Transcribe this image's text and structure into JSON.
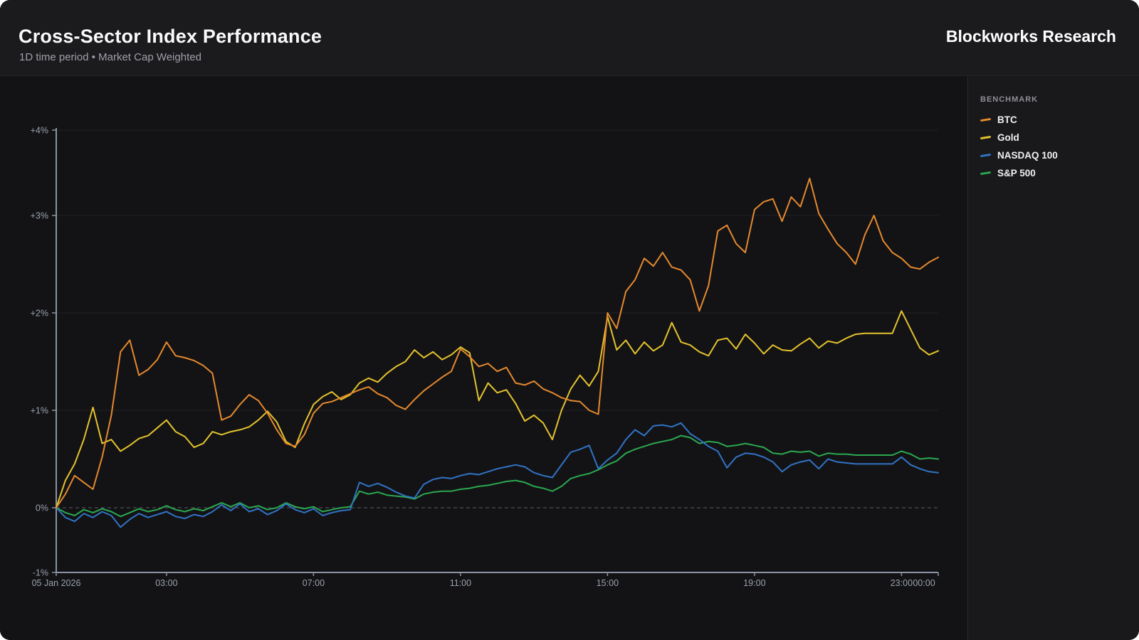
{
  "header": {
    "title": "Cross-Sector Index Performance",
    "subtitle": "1D time period • Market Cap Weighted",
    "brand": "Blockworks Research"
  },
  "legend": {
    "title": "BENCHMARK"
  },
  "chart_data": {
    "type": "line",
    "title": "Cross-Sector Index Performance",
    "subtitle": "1D time period • Market Cap Weighted",
    "x_axis": {
      "unit": "hours",
      "start": 0,
      "step": 0.25,
      "range_hours": [
        0,
        24
      ],
      "ticks": [
        {
          "hour": 0,
          "label": "05 Jan 2026"
        },
        {
          "hour": 3,
          "label": "03:00"
        },
        {
          "hour": 7,
          "label": "07:00"
        },
        {
          "hour": 11,
          "label": "11:00"
        },
        {
          "hour": 15,
          "label": "15:00"
        },
        {
          "hour": 19,
          "label": "19:00"
        },
        {
          "hour": 23,
          "label": "23:00"
        },
        {
          "hour": 24,
          "label": "00:00"
        }
      ]
    },
    "y_axis": {
      "unit": "percent",
      "range": [
        -0.66,
        3.9
      ],
      "grid": true,
      "zero_line_dashed": true,
      "ticks": [
        {
          "value": 4,
          "label": "+4%"
        },
        {
          "value": 3,
          "label": "+3%"
        },
        {
          "value": 2,
          "label": "+2%"
        },
        {
          "value": 1,
          "label": "+1%"
        },
        {
          "value": 0,
          "label": "0%"
        },
        {
          "value": -1,
          "label": "-1%"
        }
      ]
    },
    "legend_position": "right",
    "series": [
      {
        "name": "BTC",
        "color": "#E5892D",
        "values": [
          0.0,
          0.14,
          0.33,
          0.26,
          0.19,
          0.52,
          0.95,
          1.6,
          1.72,
          1.36,
          1.42,
          1.52,
          1.7,
          1.56,
          1.54,
          1.51,
          1.46,
          1.38,
          0.9,
          0.94,
          1.06,
          1.16,
          1.1,
          0.97,
          0.8,
          0.66,
          0.63,
          0.75,
          0.97,
          1.07,
          1.09,
          1.13,
          1.17,
          1.21,
          1.24,
          1.17,
          1.13,
          1.05,
          1.01,
          1.11,
          1.2,
          1.27,
          1.34,
          1.4,
          1.63,
          1.55,
          1.45,
          1.48,
          1.4,
          1.44,
          1.28,
          1.26,
          1.3,
          1.22,
          1.18,
          1.13,
          1.1,
          1.09,
          1.0,
          0.96,
          2.0,
          1.84,
          2.22,
          2.34,
          2.56,
          2.48,
          2.62,
          2.47,
          2.44,
          2.34,
          2.02,
          2.28,
          2.84,
          2.9,
          2.71,
          2.62,
          3.06,
          3.14,
          3.17,
          2.94,
          3.19,
          3.09,
          3.38,
          3.02,
          2.86,
          2.71,
          2.62,
          2.5,
          2.8,
          3.0,
          2.74,
          2.62,
          2.56,
          2.47,
          2.45,
          2.52,
          2.57
        ]
      },
      {
        "name": "Gold",
        "color": "#E4C32C",
        "values": [
          0.0,
          0.28,
          0.45,
          0.7,
          1.03,
          0.66,
          0.7,
          0.58,
          0.64,
          0.71,
          0.74,
          0.82,
          0.9,
          0.78,
          0.73,
          0.62,
          0.66,
          0.78,
          0.75,
          0.78,
          0.8,
          0.83,
          0.9,
          0.99,
          0.88,
          0.68,
          0.62,
          0.86,
          1.06,
          1.14,
          1.19,
          1.11,
          1.16,
          1.28,
          1.33,
          1.29,
          1.38,
          1.45,
          1.5,
          1.62,
          1.54,
          1.6,
          1.52,
          1.57,
          1.65,
          1.59,
          1.1,
          1.28,
          1.18,
          1.21,
          1.07,
          0.89,
          0.95,
          0.87,
          0.7,
          1.0,
          1.22,
          1.36,
          1.25,
          1.4,
          1.96,
          1.62,
          1.72,
          1.58,
          1.7,
          1.61,
          1.67,
          1.9,
          1.7,
          1.67,
          1.6,
          1.56,
          1.72,
          1.74,
          1.63,
          1.78,
          1.69,
          1.58,
          1.67,
          1.62,
          1.61,
          1.68,
          1.74,
          1.64,
          1.71,
          1.69,
          1.74,
          1.78,
          1.79,
          1.79,
          1.79,
          1.79,
          2.02,
          1.83,
          1.64,
          1.57,
          1.61
        ]
      },
      {
        "name": "NASDAQ 100",
        "color": "#3173C4",
        "values": [
          0.0,
          -0.1,
          -0.14,
          -0.06,
          -0.1,
          -0.04,
          -0.08,
          -0.2,
          -0.12,
          -0.06,
          -0.1,
          -0.07,
          -0.04,
          -0.09,
          -0.11,
          -0.07,
          -0.09,
          -0.04,
          0.03,
          -0.03,
          0.04,
          -0.04,
          -0.01,
          -0.07,
          -0.03,
          0.04,
          -0.02,
          -0.05,
          -0.01,
          -0.08,
          -0.05,
          -0.03,
          -0.02,
          0.26,
          0.22,
          0.25,
          0.21,
          0.16,
          0.12,
          0.1,
          0.24,
          0.29,
          0.31,
          0.3,
          0.33,
          0.35,
          0.34,
          0.37,
          0.4,
          0.42,
          0.44,
          0.42,
          0.36,
          0.33,
          0.31,
          0.44,
          0.57,
          0.6,
          0.64,
          0.4,
          0.49,
          0.56,
          0.7,
          0.8,
          0.74,
          0.84,
          0.85,
          0.83,
          0.87,
          0.76,
          0.7,
          0.63,
          0.58,
          0.41,
          0.52,
          0.56,
          0.55,
          0.52,
          0.47,
          0.37,
          0.44,
          0.47,
          0.49,
          0.4,
          0.5,
          0.47,
          0.46,
          0.45,
          0.45,
          0.45,
          0.45,
          0.45,
          0.52,
          0.44,
          0.4,
          0.37,
          0.36
        ]
      },
      {
        "name": "S&P 500",
        "color": "#2BA84F",
        "values": [
          0.0,
          -0.05,
          -0.08,
          -0.02,
          -0.05,
          -0.01,
          -0.04,
          -0.09,
          -0.05,
          -0.01,
          -0.04,
          -0.02,
          0.02,
          -0.02,
          -0.04,
          -0.01,
          -0.03,
          0.01,
          0.05,
          0.01,
          0.05,
          0.0,
          0.02,
          -0.02,
          0.0,
          0.05,
          0.01,
          -0.01,
          0.01,
          -0.04,
          -0.02,
          0.0,
          0.01,
          0.17,
          0.14,
          0.16,
          0.13,
          0.12,
          0.11,
          0.09,
          0.14,
          0.16,
          0.17,
          0.17,
          0.19,
          0.2,
          0.22,
          0.23,
          0.25,
          0.27,
          0.28,
          0.26,
          0.22,
          0.2,
          0.17,
          0.22,
          0.3,
          0.33,
          0.35,
          0.39,
          0.44,
          0.48,
          0.56,
          0.6,
          0.63,
          0.66,
          0.68,
          0.7,
          0.74,
          0.72,
          0.66,
          0.68,
          0.67,
          0.63,
          0.64,
          0.66,
          0.64,
          0.62,
          0.56,
          0.55,
          0.58,
          0.57,
          0.58,
          0.53,
          0.56,
          0.55,
          0.55,
          0.54,
          0.54,
          0.54,
          0.54,
          0.54,
          0.58,
          0.55,
          0.5,
          0.51,
          0.5
        ]
      }
    ]
  }
}
